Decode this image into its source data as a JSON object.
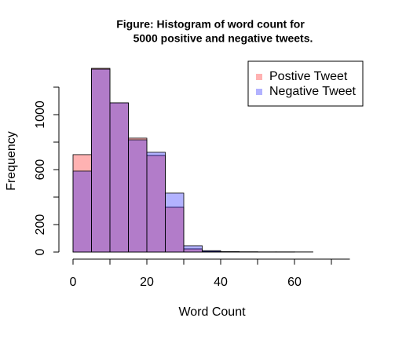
{
  "chart_data": {
    "type": "histogram",
    "title": [
      "Figure: Histogram of word count for",
      "5000 positive and negative tweets."
    ],
    "xlabel": "Word Count",
    "ylabel": "Frequency",
    "bins": [
      0,
      5,
      10,
      15,
      20,
      25,
      30,
      35,
      40,
      45,
      50,
      55,
      60,
      65,
      70,
      75
    ],
    "series": [
      {
        "name": "Postive Tweet",
        "color": "rgba(255,0,0,0.3)",
        "values": [
          709,
          1337,
          1086,
          829,
          703,
          326,
          23,
          5,
          2,
          1,
          1,
          1,
          1,
          0,
          0
        ]
      },
      {
        "name": "Negative Tweet",
        "color": "rgba(0,0,255,0.3)",
        "values": [
          589,
          1331,
          1086,
          817,
          726,
          429,
          46,
          10,
          3,
          2,
          1,
          1,
          0,
          0,
          0
        ]
      }
    ],
    "xlim": [
      0,
      75
    ],
    "xticks": [
      0,
      20,
      40,
      60
    ],
    "xminor_ticks": [
      10,
      30,
      50,
      70
    ],
    "ylim": [
      0,
      1400
    ],
    "yticks": [
      0,
      200,
      600,
      1000
    ],
    "yminor_ticks": [
      400,
      800,
      1200
    ],
    "legend": "top-right"
  }
}
